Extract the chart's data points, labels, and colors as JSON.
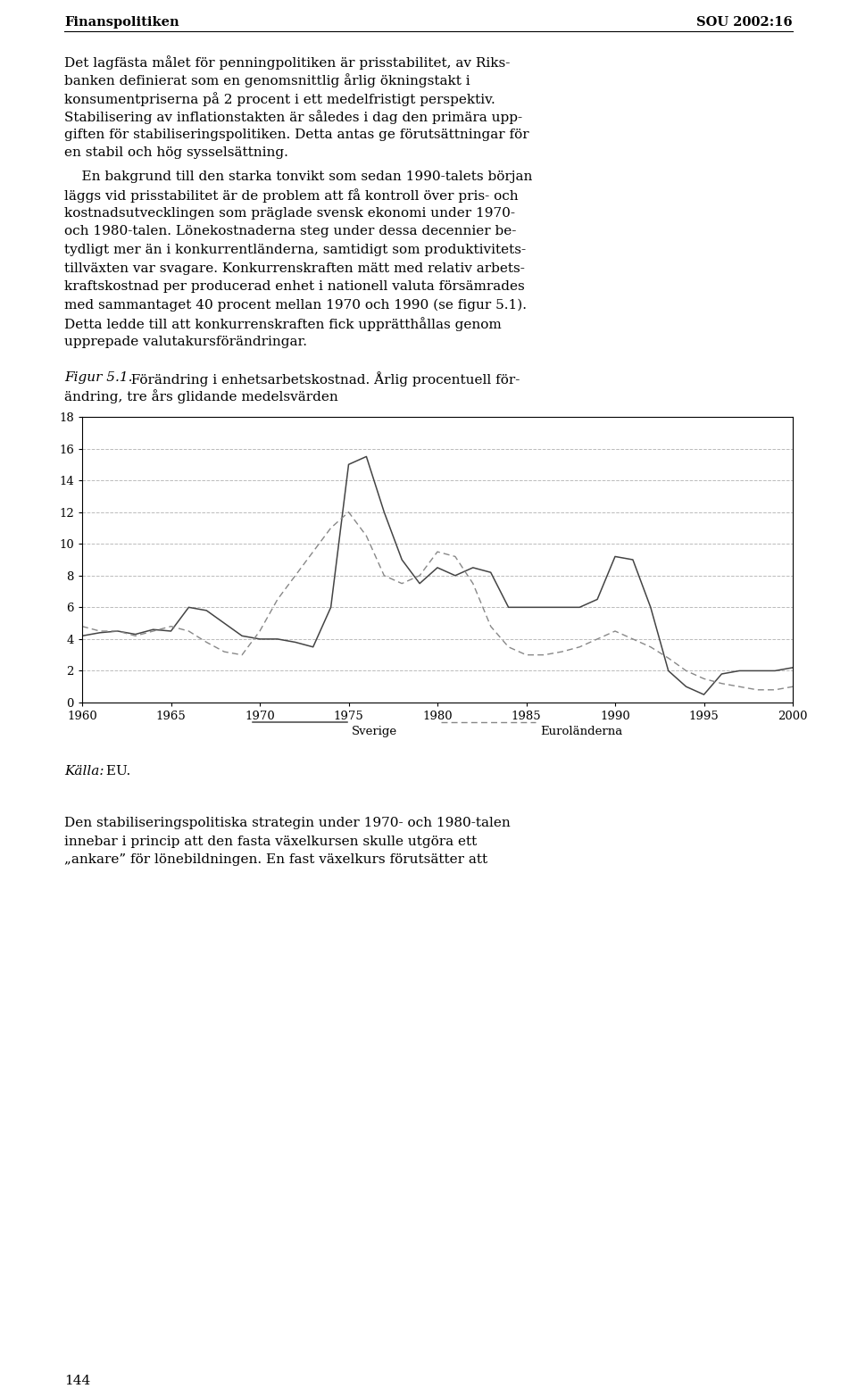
{
  "header_left": "Finanspolitiken",
  "header_right": "SOU 2002:16",
  "p1_lines": [
    "Det lagfästa målet för penningpolitiken är prisstabilitet, av Riks-",
    "banken definierat som en genomsnittlig årlig ökningstakt i",
    "konsumentpriserna på 2 procent i ett medelfristigt perspektiv.",
    "Stabilisering av inflationstakten är således i dag den primära upp-",
    "giften för stabiliseringspolitiken. Detta antas ge förutsättningar för",
    "en stabil och hög sysselsättning."
  ],
  "p2_lines": [
    "    En bakgrund till den starka tonvikt som sedan 1990-talets början",
    "läggs vid prisstabilitet är de problem att få kontroll över pris- och",
    "kostnadsutvecklingen som präglade svensk ekonomi under 1970-",
    "och 1980-talen. Lönekostnaderna steg under dessa decennier be-",
    "tydligt mer än i konkurrentländerna, samtidigt som produktivitets-",
    "tillväxten var svagare. Konkurrenskraften mätt med relativ arbets-",
    "kraftskostnad per producerad enhet i nationell valuta försämrades",
    "med sammantaget 40 procent mellan 1970 och 1990 (se figur 5.1).",
    "Detta ledde till att konkurrenskraften fick upprätthållas genom",
    "upprepade valutakursförändringar."
  ],
  "fig_cap_italic": "Figur 5.1.",
  "fig_cap_rest_line1": "  Förändring i enhetsarbetskostnad. Årlig procentuell för-",
  "fig_cap_line2": "ändring, tre års glidande medelsvärden",
  "ylabel_values": [
    0,
    2,
    4,
    6,
    8,
    10,
    12,
    14,
    16,
    18
  ],
  "xlim": [
    1960,
    2000
  ],
  "ylim": [
    0,
    18
  ],
  "xticks": [
    1960,
    1965,
    1970,
    1975,
    1980,
    1985,
    1990,
    1995,
    2000
  ],
  "sverige_x": [
    1960,
    1961,
    1962,
    1963,
    1964,
    1965,
    1966,
    1967,
    1968,
    1969,
    1970,
    1971,
    1972,
    1973,
    1974,
    1975,
    1976,
    1977,
    1978,
    1979,
    1980,
    1981,
    1982,
    1983,
    1984,
    1985,
    1986,
    1987,
    1988,
    1989,
    1990,
    1991,
    1992,
    1993,
    1994,
    1995,
    1996,
    1997,
    1998,
    1999,
    2000
  ],
  "sverige_y": [
    4.2,
    4.4,
    4.5,
    4.3,
    4.6,
    4.5,
    6.0,
    5.8,
    5.0,
    4.2,
    4.0,
    4.0,
    3.8,
    3.5,
    6.0,
    15.0,
    15.5,
    12.0,
    9.0,
    7.5,
    8.5,
    8.0,
    8.5,
    8.2,
    6.0,
    6.0,
    6.0,
    6.0,
    6.0,
    6.5,
    9.2,
    9.0,
    6.0,
    2.0,
    1.0,
    0.5,
    1.8,
    2.0,
    2.0,
    2.0,
    2.2
  ],
  "euro_x": [
    1960,
    1961,
    1962,
    1963,
    1964,
    1965,
    1966,
    1967,
    1968,
    1969,
    1970,
    1971,
    1972,
    1973,
    1974,
    1975,
    1976,
    1977,
    1978,
    1979,
    1980,
    1981,
    1982,
    1983,
    1984,
    1985,
    1986,
    1987,
    1988,
    1989,
    1990,
    1991,
    1992,
    1993,
    1994,
    1995,
    1996,
    1997,
    1998,
    1999,
    2000
  ],
  "euro_y": [
    4.8,
    4.5,
    4.5,
    4.2,
    4.5,
    4.8,
    4.5,
    3.8,
    3.2,
    3.0,
    4.5,
    6.5,
    8.0,
    9.5,
    11.0,
    12.0,
    10.5,
    8.0,
    7.5,
    8.0,
    9.5,
    9.2,
    7.5,
    4.8,
    3.5,
    3.0,
    3.0,
    3.2,
    3.5,
    4.0,
    4.5,
    4.0,
    3.5,
    2.8,
    2.0,
    1.5,
    1.2,
    1.0,
    0.8,
    0.8,
    1.0
  ],
  "legend_sverige": "Sverige",
  "legend_euro": "Euroländerna",
  "source_italic": "Källa:",
  "source_normal": " EU.",
  "p3_lines": [
    "Den stabiliseringspolitiska strategin under 1970- och 1980-talen",
    "innebar i princip att den fasta växelkursen skulle utgöra ett",
    "„ankare” för lönebildningen. En fast växelkurs förutsätter att"
  ],
  "page_number": "144",
  "bg_color": "#ffffff",
  "text_color": "#000000",
  "line_color_sverige": "#444444",
  "line_color_euro": "#888888",
  "grid_color": "#bbbbbb"
}
